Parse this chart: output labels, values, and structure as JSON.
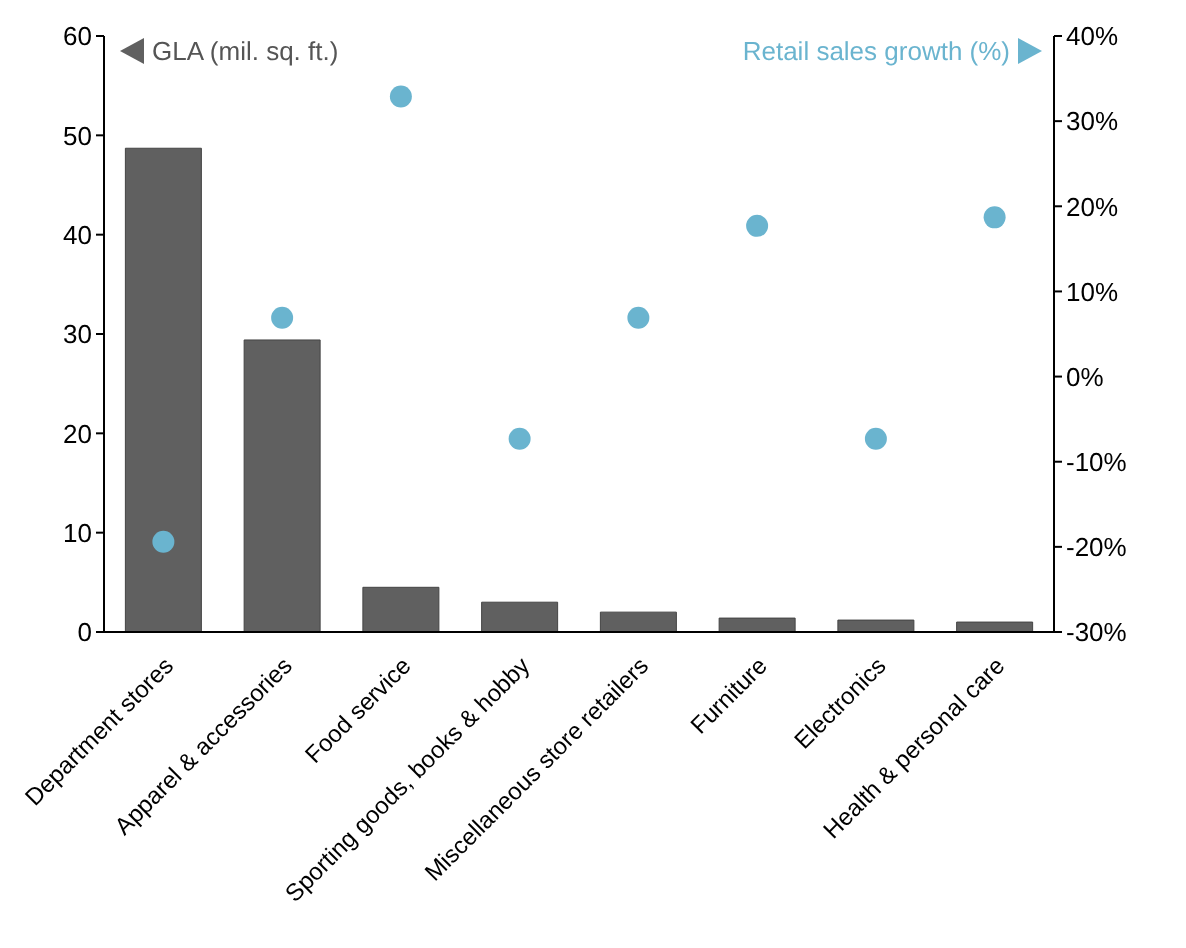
{
  "chart_data": {
    "type": "bar",
    "categories": [
      "Department stores",
      "Apparel & accessories",
      "Food service",
      "Sporting goods, books & hobby",
      "Miscellaneous store retailers",
      "Furniture",
      "Electronics",
      "Health & personal care"
    ],
    "series": [
      {
        "name": "GLA (mil. sq. ft.)",
        "color": "#606060",
        "values": [
          48.7,
          29.4,
          4.5,
          3.0,
          2.0,
          1.4,
          1.2,
          1.0
        ]
      },
      {
        "name": "Retail sales growth (%)",
        "type": "scatter",
        "axis": "y2",
        "color": "#6ab4cf",
        "values": [
          -19.4,
          6.9,
          32.9,
          -7.3,
          6.9,
          17.7,
          -7.3,
          18.7
        ]
      }
    ],
    "ylim": [
      0,
      60
    ],
    "yticks": [
      0,
      10,
      20,
      30,
      40,
      50,
      60
    ],
    "y2lim": [
      -30,
      40
    ],
    "y2ticks": [
      {
        "value": -30,
        "label": "-30%"
      },
      {
        "value": -20,
        "label": "-20%"
      },
      {
        "value": -10,
        "label": "-10%"
      },
      {
        "value": 0,
        "label": "0%"
      },
      {
        "value": 10,
        "label": "10%"
      },
      {
        "value": 20,
        "label": "20%"
      },
      {
        "value": 30,
        "label": "30%"
      },
      {
        "value": 40,
        "label": "40%"
      }
    ],
    "legend": "top",
    "grid": false,
    "marker": "circle"
  }
}
